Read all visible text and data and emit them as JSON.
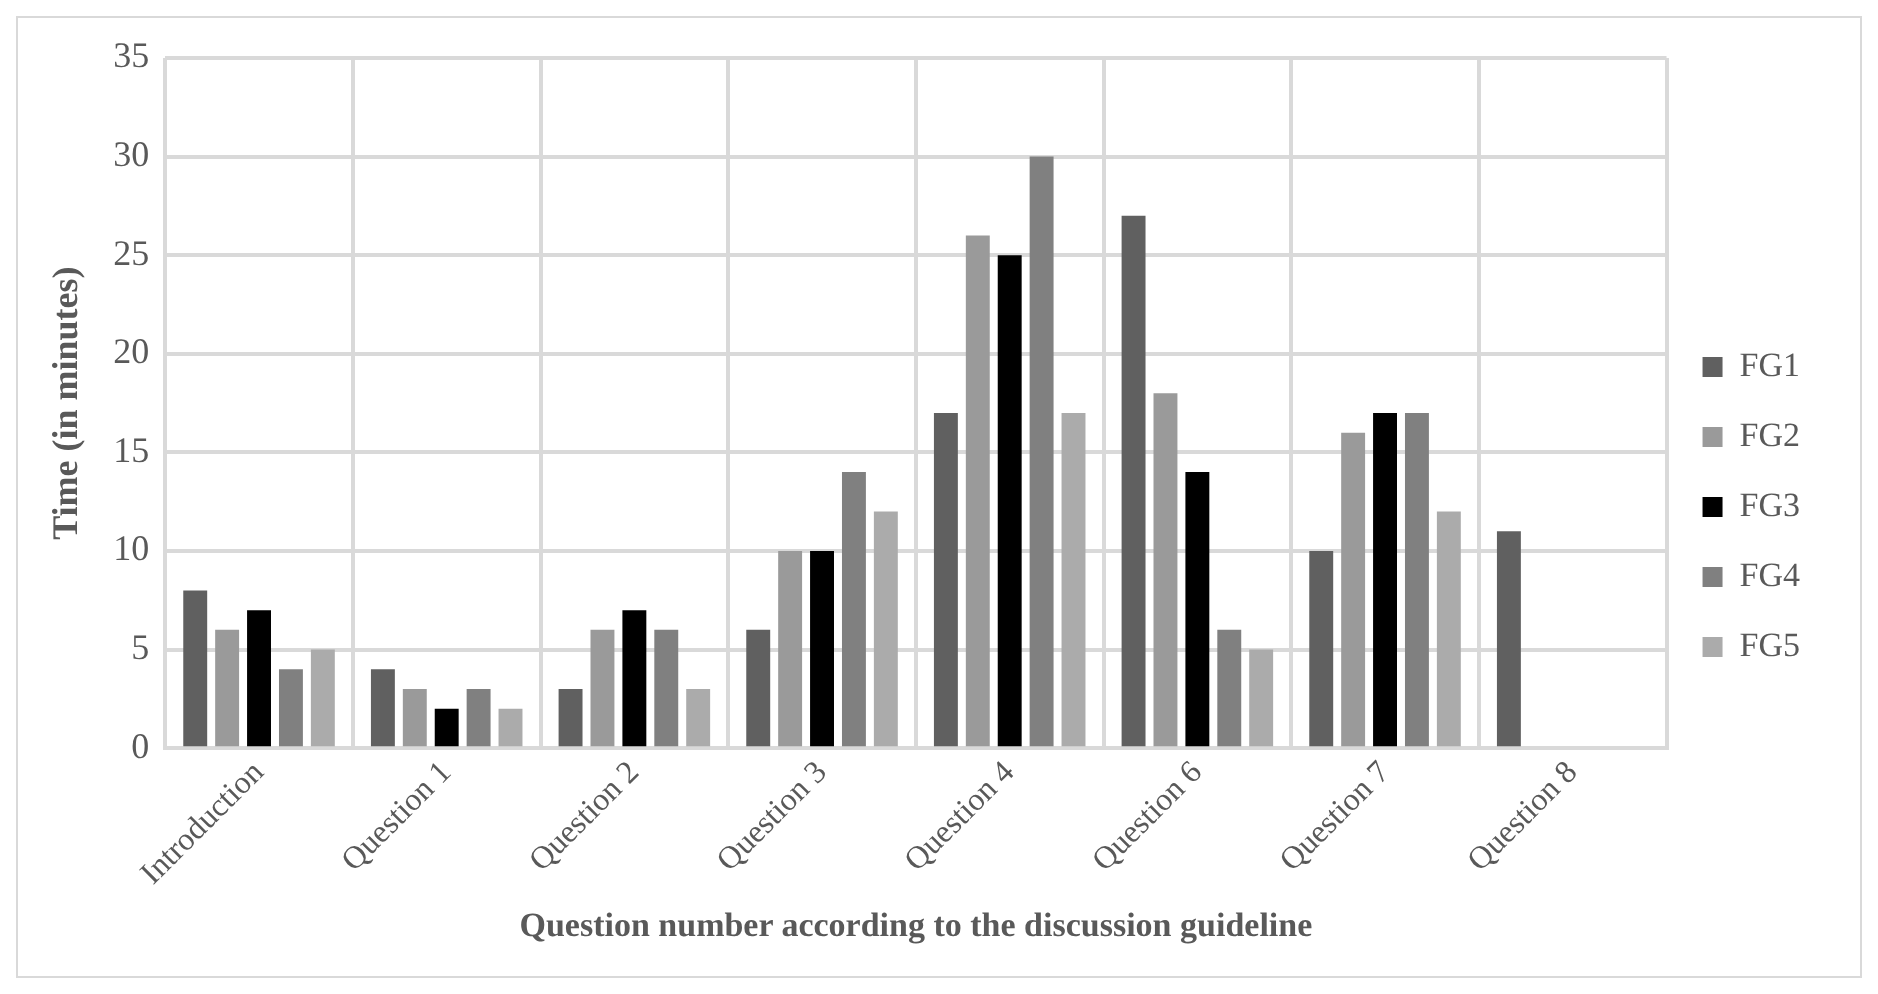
{
  "chart_data": {
    "type": "bar",
    "xlabel": "Question number according to the discussion guideline",
    "ylabel": "Time (in minutes)",
    "categories": [
      "Introduction",
      "Question 1",
      "Question 2",
      "Question 3",
      "Question 4",
      "Question 6",
      "Question 7",
      "Question 8"
    ],
    "series": [
      {
        "name": "FG1",
        "color": "#606060",
        "values": [
          8,
          4,
          3,
          6,
          17,
          27,
          10,
          11
        ]
      },
      {
        "name": "FG2",
        "color": "#9a9a9a",
        "values": [
          6,
          3,
          6,
          10,
          26,
          18,
          16,
          null
        ]
      },
      {
        "name": "FG3",
        "color": "#000000",
        "values": [
          7,
          2,
          7,
          10,
          25,
          14,
          17,
          null
        ]
      },
      {
        "name": "FG4",
        "color": "#808080",
        "values": [
          4,
          3,
          6,
          14,
          30,
          6,
          17,
          null
        ]
      },
      {
        "name": "FG5",
        "color": "#ababab",
        "values": [
          5,
          2,
          3,
          12,
          17,
          5,
          12,
          null
        ]
      }
    ],
    "ylim": [
      0,
      35
    ],
    "yticks": [
      0,
      5,
      10,
      15,
      20,
      25,
      30,
      35
    ],
    "grid": true,
    "legend": "right"
  }
}
